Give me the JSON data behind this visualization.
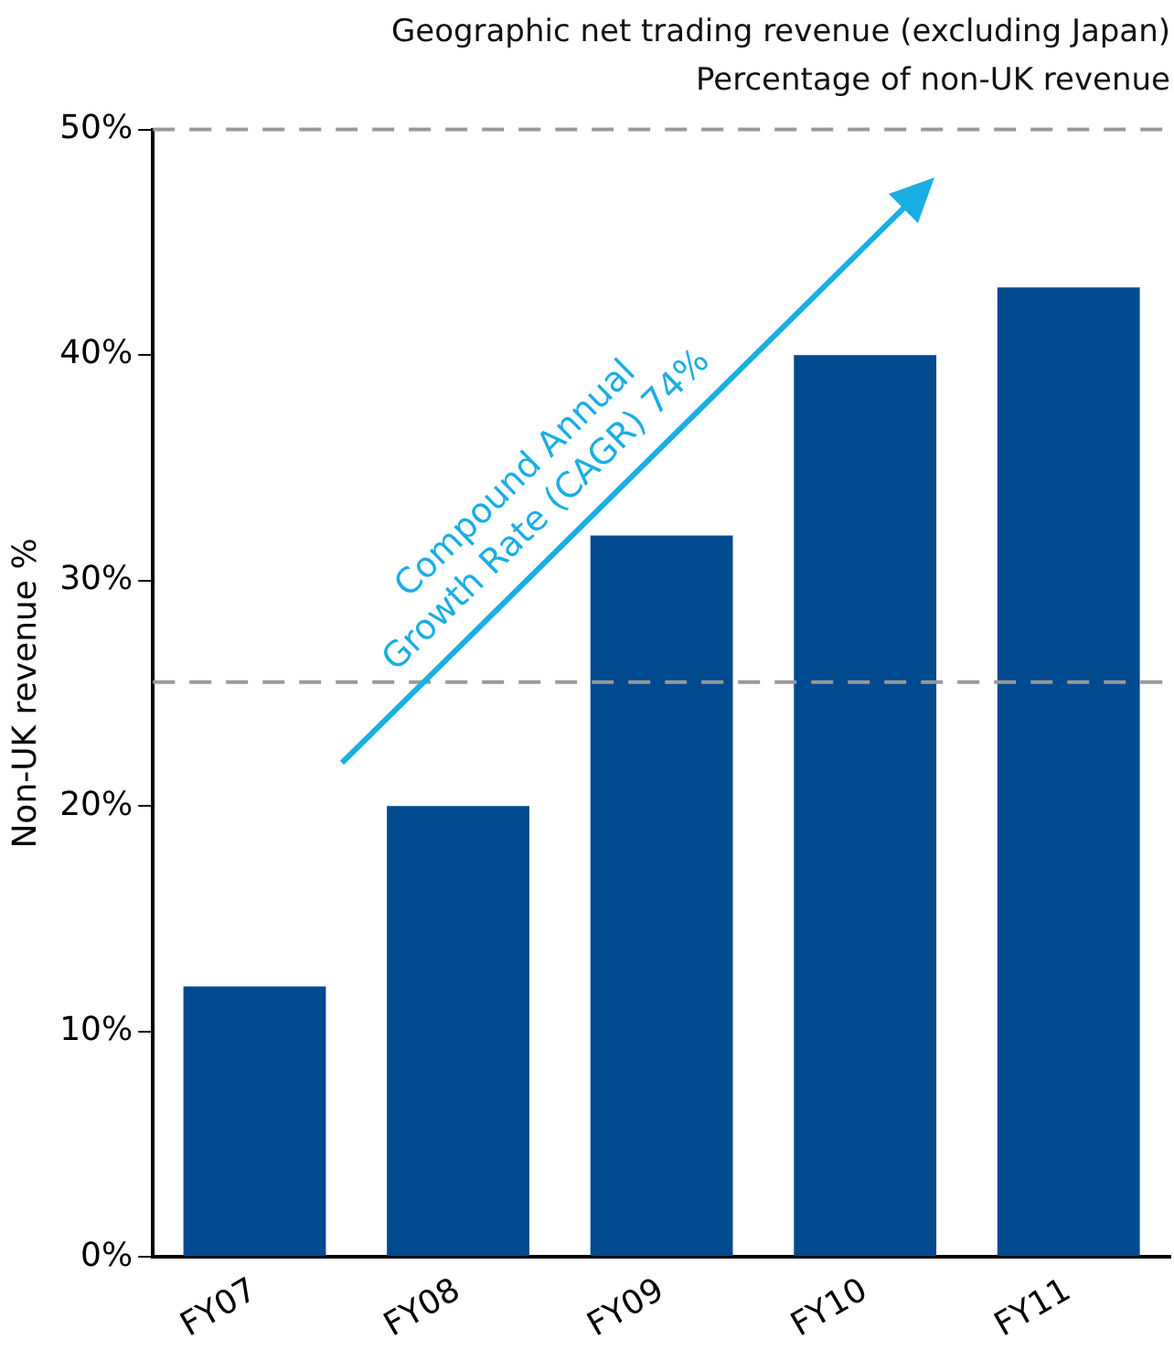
{
  "chart_data": {
    "type": "bar",
    "title": "Geographic net trading revenue (excluding Japan)",
    "subtitle": "Percentage of non-UK revenue",
    "ylabel": "Non-UK revenue %",
    "categories": [
      "FY07",
      "FY08",
      "FY09",
      "FY10",
      "FY11"
    ],
    "values": [
      12,
      20,
      32,
      40,
      43
    ],
    "color": "#004a8f",
    "ylim": [
      0,
      50
    ],
    "yticks": [
      {
        "value": 0,
        "label": "0%"
      },
      {
        "value": 10,
        "label": "10%"
      },
      {
        "value": 20,
        "label": "20%"
      },
      {
        "value": 30,
        "label": "30%"
      },
      {
        "value": 40,
        "label": "40%"
      },
      {
        "value": 50,
        "label": "50%"
      }
    ],
    "grid": false,
    "legend": false,
    "ref_lines": [
      {
        "axis": "y",
        "value": 50,
        "color": "#999999",
        "line_style": "dashed"
      },
      {
        "axis": "y",
        "value": 25.5,
        "color": "#999999",
        "line_style": "dashed"
      }
    ],
    "annotations": [
      "Compound Annual Growth Rate (CAGR) 74%"
    ]
  }
}
